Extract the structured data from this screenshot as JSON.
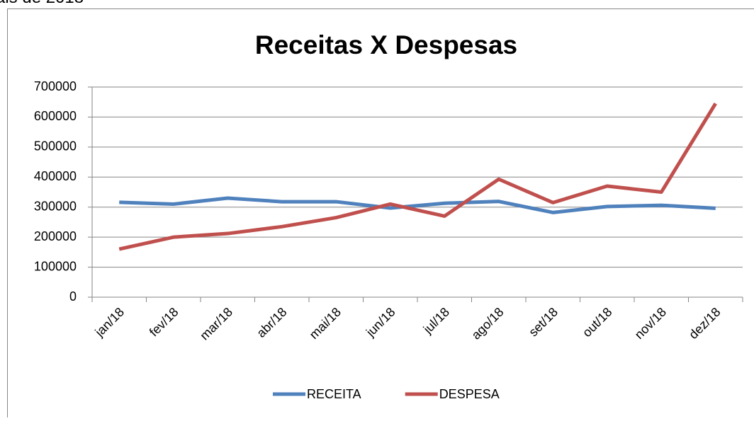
{
  "caption": "ais de 2018",
  "chart_data": {
    "type": "line",
    "title": "Receitas X Despesas",
    "categories": [
      "jan/18",
      "fev/18",
      "mar/18",
      "abr/18",
      "mai/18",
      "jun/18",
      "jul/18",
      "ago/18",
      "set/18",
      "out/18",
      "nov/18",
      "dez/18"
    ],
    "series": [
      {
        "name": "RECEITA",
        "color": "#4f81bd",
        "values": [
          316000,
          310000,
          330000,
          318000,
          318000,
          297000,
          313000,
          319000,
          282000,
          302000,
          306000,
          296000
        ]
      },
      {
        "name": "DESPESA",
        "color": "#c0504d",
        "values": [
          160000,
          200000,
          212000,
          235000,
          265000,
          310000,
          270000,
          393000,
          315000,
          370000,
          350000,
          645000
        ]
      }
    ],
    "ylim": [
      0,
      700000
    ],
    "yticks": [
      0,
      100000,
      200000,
      300000,
      400000,
      500000,
      600000,
      700000
    ],
    "grid": true,
    "legend": "bottom"
  }
}
